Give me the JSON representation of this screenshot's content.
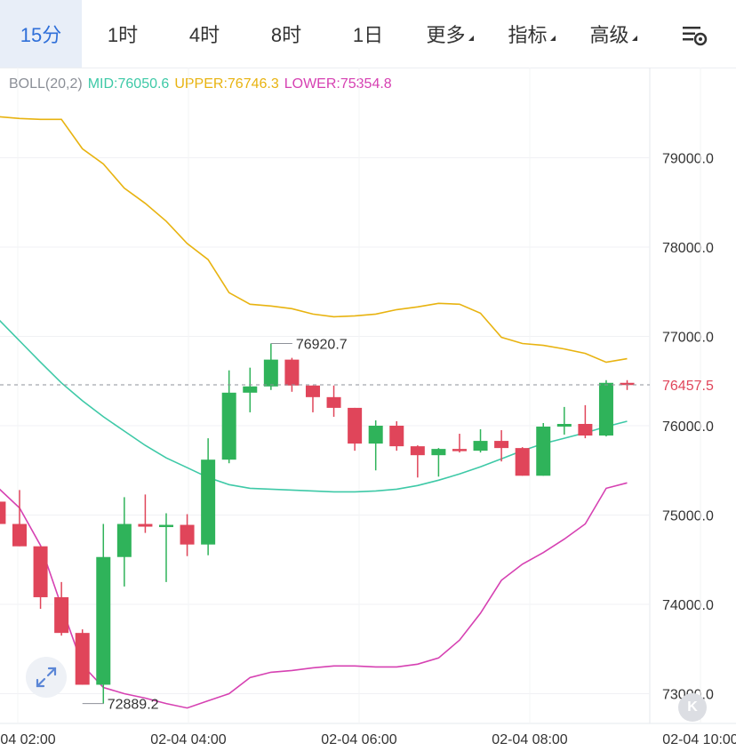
{
  "tabs": [
    {
      "label": "15分",
      "active": true
    },
    {
      "label": "1时",
      "active": false
    },
    {
      "label": "4时",
      "active": false
    },
    {
      "label": "8时",
      "active": false
    },
    {
      "label": "1日",
      "active": false
    },
    {
      "label": "更多",
      "active": false,
      "dropdown": true
    },
    {
      "label": "指标",
      "active": false,
      "dropdown": true
    },
    {
      "label": "高级",
      "active": false,
      "dropdown": true
    }
  ],
  "settings_icon": "chart-settings-icon",
  "indicator": {
    "name": "BOLL(20,2)",
    "mid": "MID:76050.6",
    "upper": "UPPER:76746.3",
    "lower": "LOWER:75354.8"
  },
  "colors": {
    "up": "#2fb35a",
    "down": "#e0455a",
    "mid": "#3ec9a7",
    "upper": "#e8b310",
    "lower": "#d641b2",
    "active_tab": "#2f6fd9"
  },
  "expand_icon": "expand-arrows-icon",
  "k_button": "K",
  "chart_data": {
    "type": "candlestick",
    "ylim": [
      72800,
      80100
    ],
    "y_ticks": [
      "79000.0",
      "78000.0",
      "77000.0",
      "76000.0",
      "75000.0",
      "74000.0",
      "73000.0"
    ],
    "x_ticks": [
      "02-04 02:00",
      "02-04 04:00",
      "02-04 06:00",
      "02-04 08:00",
      "02-04 10:00"
    ],
    "last_price": 76457.5,
    "last_price_label": "76457.5",
    "annotations": [
      {
        "text": "76920.7",
        "value": 76920.7,
        "candle": 13
      },
      {
        "text": "72889.2",
        "value": 72889.2,
        "candle": 4
      }
    ],
    "candles": [
      {
        "o": 75150,
        "h": 75200,
        "l": 74900,
        "c": 74900
      },
      {
        "o": 74900,
        "h": 75280,
        "l": 74650,
        "c": 74650
      },
      {
        "o": 74650,
        "h": 74650,
        "l": 73950,
        "c": 74080
      },
      {
        "o": 74080,
        "h": 74250,
        "l": 73650,
        "c": 73680
      },
      {
        "o": 73680,
        "h": 73720,
        "l": 73100,
        "c": 73100
      },
      {
        "o": 73100,
        "h": 74900,
        "l": 72889.2,
        "c": 74530
      },
      {
        "o": 74530,
        "h": 75200,
        "l": 74200,
        "c": 74900
      },
      {
        "o": 74900,
        "h": 75230,
        "l": 74800,
        "c": 74870
      },
      {
        "o": 74870,
        "h": 75020,
        "l": 74250,
        "c": 74890
      },
      {
        "o": 74890,
        "h": 75010,
        "l": 74540,
        "c": 74670
      },
      {
        "o": 74670,
        "h": 75860,
        "l": 74550,
        "c": 75620
      },
      {
        "o": 75620,
        "h": 76620,
        "l": 75580,
        "c": 76370
      },
      {
        "o": 76370,
        "h": 76650,
        "l": 76150,
        "c": 76440
      },
      {
        "o": 76440,
        "h": 76920.7,
        "l": 76400,
        "c": 76740
      },
      {
        "o": 76740,
        "h": 76760,
        "l": 76380,
        "c": 76450
      },
      {
        "o": 76450,
        "h": 76450,
        "l": 76150,
        "c": 76320
      },
      {
        "o": 76320,
        "h": 76450,
        "l": 76100,
        "c": 76200
      },
      {
        "o": 76200,
        "h": 76200,
        "l": 75720,
        "c": 75800
      },
      {
        "o": 75800,
        "h": 76060,
        "l": 75500,
        "c": 76000
      },
      {
        "o": 76000,
        "h": 76050,
        "l": 75720,
        "c": 75770
      },
      {
        "o": 75770,
        "h": 75780,
        "l": 75420,
        "c": 75670
      },
      {
        "o": 75670,
        "h": 75750,
        "l": 75430,
        "c": 75740
      },
      {
        "o": 75740,
        "h": 75910,
        "l": 75700,
        "c": 75720
      },
      {
        "o": 75720,
        "h": 75960,
        "l": 75700,
        "c": 75830
      },
      {
        "o": 75830,
        "h": 75950,
        "l": 75600,
        "c": 75750
      },
      {
        "o": 75750,
        "h": 75760,
        "l": 75440,
        "c": 75440
      },
      {
        "o": 75440,
        "h": 76030,
        "l": 75440,
        "c": 75990
      },
      {
        "o": 75990,
        "h": 76210,
        "l": 75900,
        "c": 76020
      },
      {
        "o": 76020,
        "h": 76230,
        "l": 75860,
        "c": 75890
      },
      {
        "o": 75890,
        "h": 76510,
        "l": 75880,
        "c": 76480
      },
      {
        "o": 76480,
        "h": 76510,
        "l": 76400,
        "c": 76457.5
      }
    ],
    "boll_upper": [
      79460,
      79440,
      79430,
      79430,
      79100,
      78930,
      78660,
      78490,
      78290,
      78040,
      77860,
      77490,
      77360,
      77340,
      77310,
      77250,
      77220,
      77230,
      77250,
      77300,
      77330,
      77370,
      77360,
      77260,
      76990,
      76920,
      76900,
      76860,
      76810,
      76710,
      76750
    ],
    "boll_mid": [
      77190,
      76950,
      76710,
      76480,
      76280,
      76100,
      75940,
      75780,
      75640,
      75530,
      75420,
      75340,
      75300,
      75290,
      75280,
      75270,
      75260,
      75260,
      75270,
      75290,
      75330,
      75390,
      75460,
      75540,
      75630,
      75720,
      75800,
      75860,
      75920,
      75990,
      76050
    ],
    "boll_lower": [
      75300,
      75080,
      74660,
      73980,
      73320,
      73070,
      73000,
      72950,
      72890,
      72840,
      72920,
      73000,
      73180,
      73240,
      73260,
      73290,
      73310,
      73310,
      73300,
      73300,
      73330,
      73400,
      73600,
      73900,
      74270,
      74450,
      74580,
      74730,
      74900,
      75300,
      75360
    ]
  }
}
